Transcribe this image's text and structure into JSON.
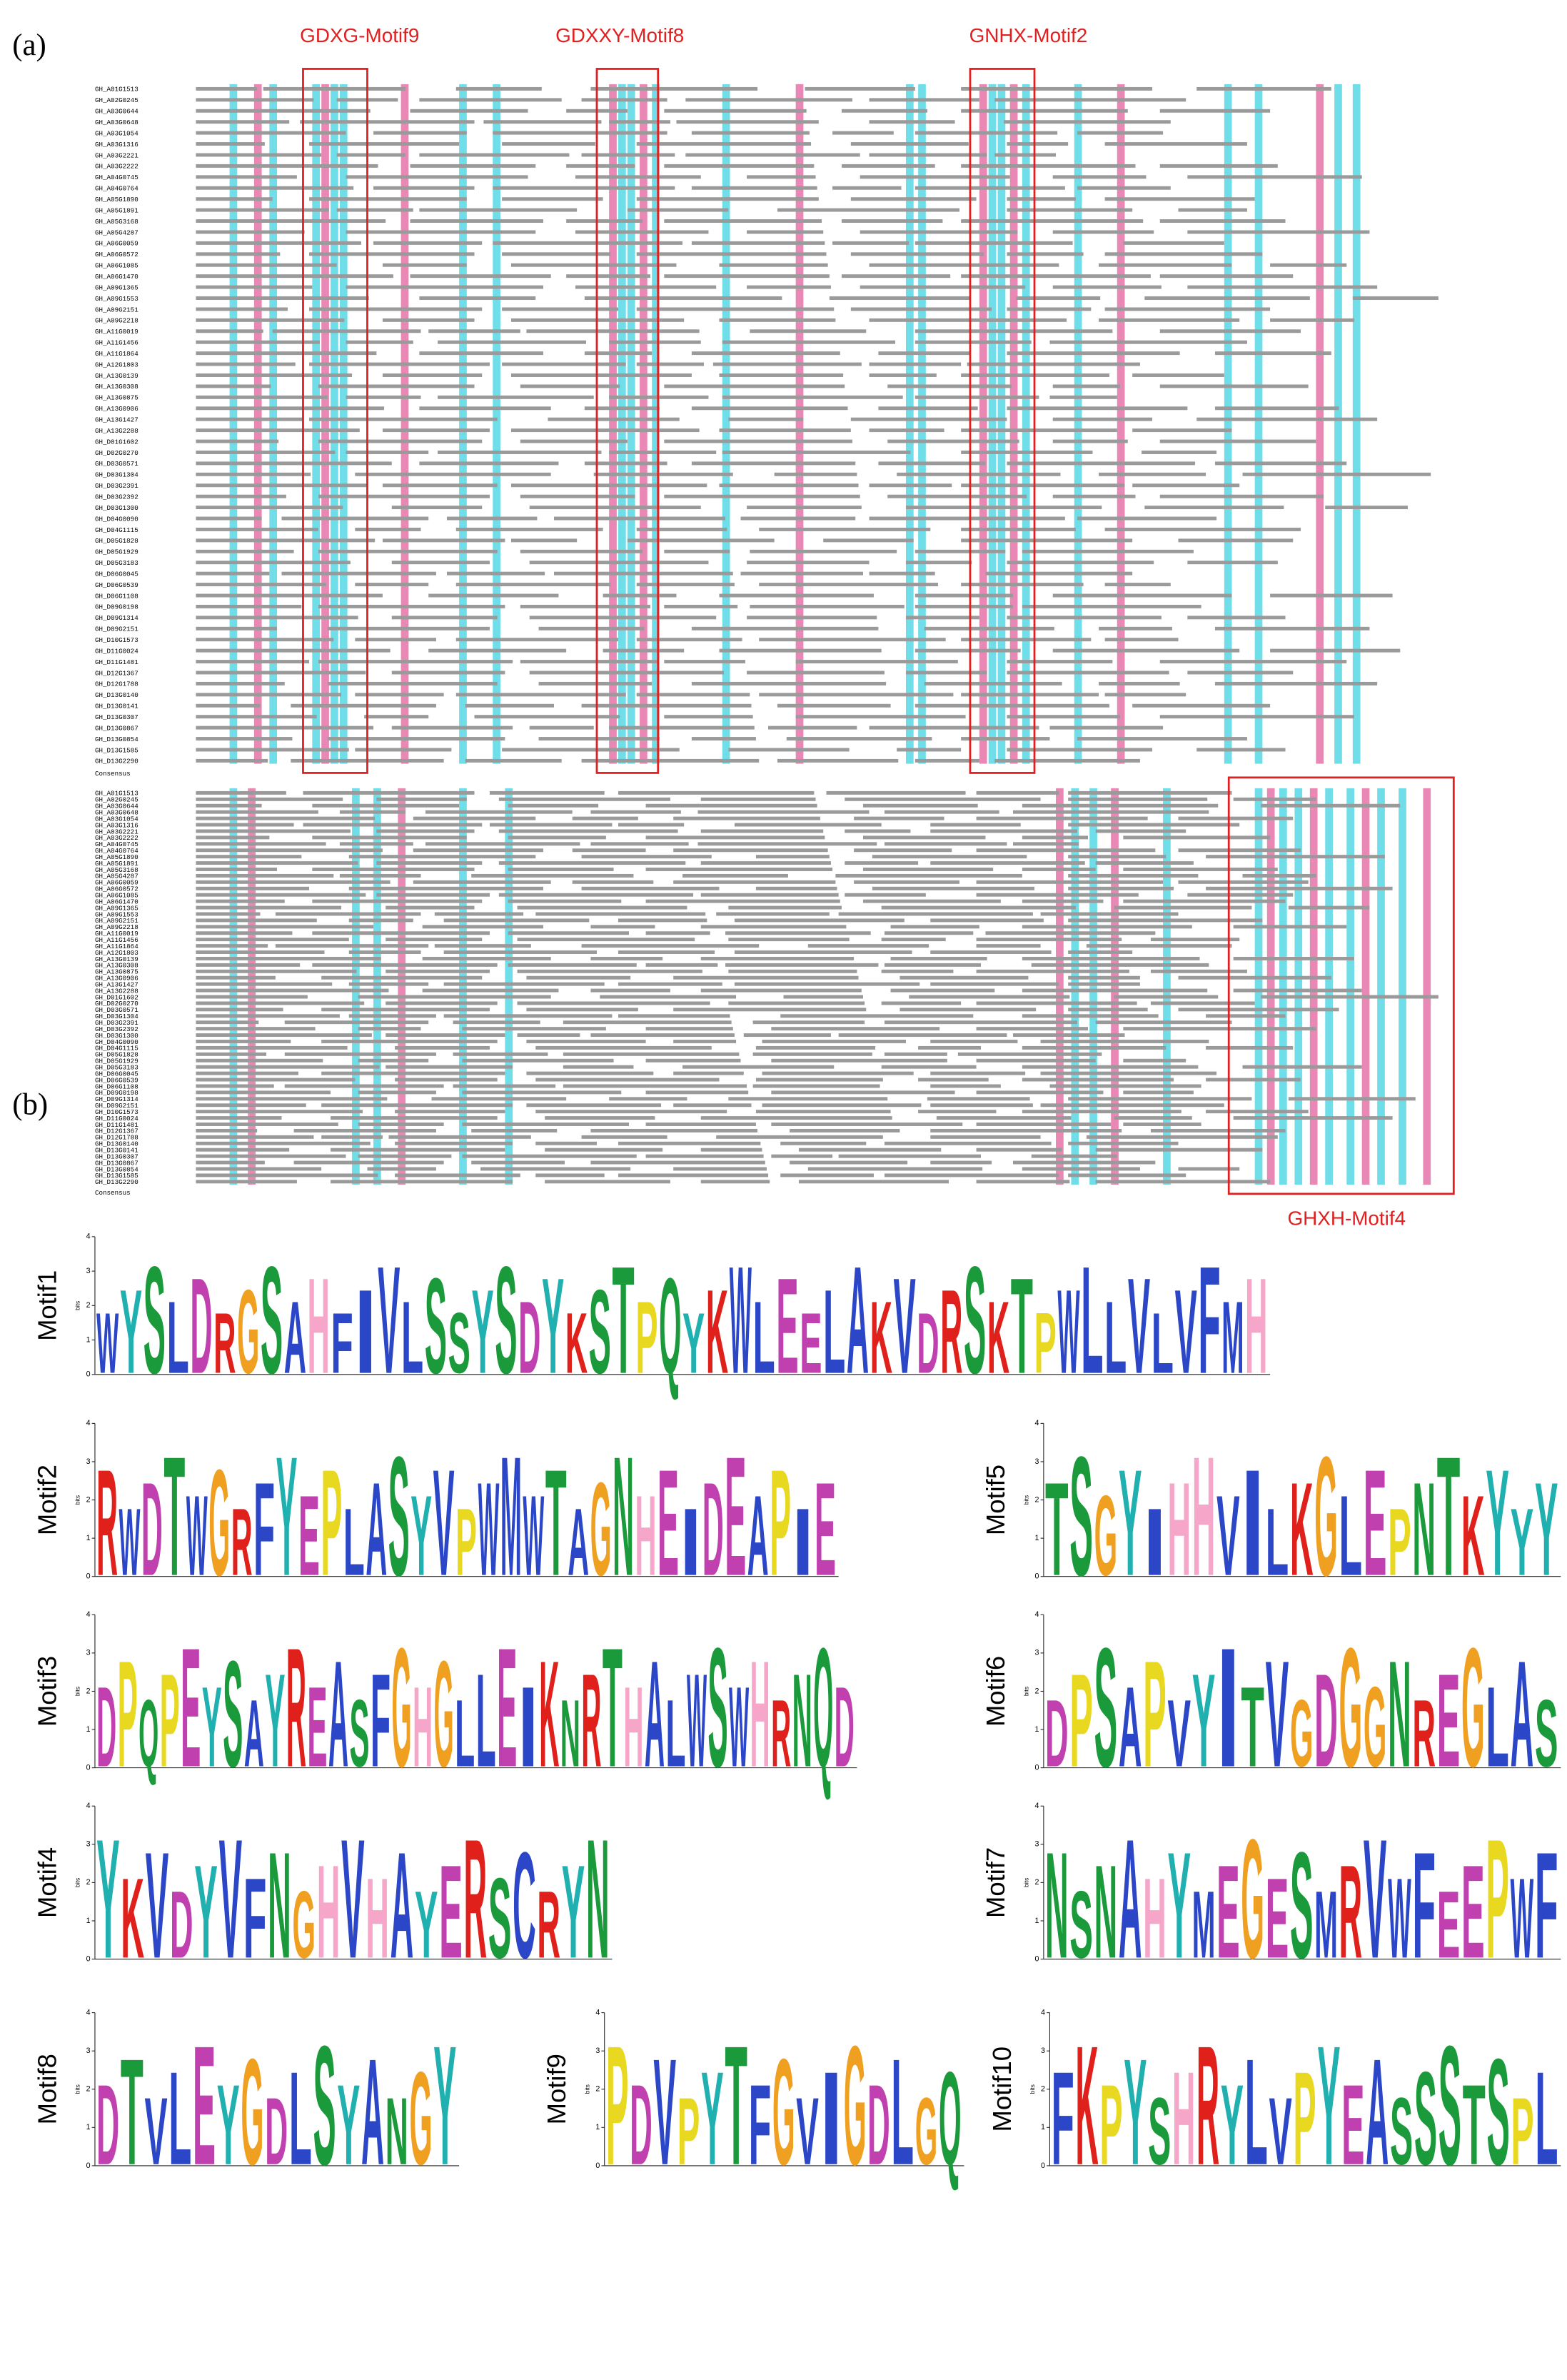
{
  "panel_a": {
    "label": "(a)",
    "motif_boxes": [
      {
        "label": "GDXG-Motif9"
      },
      {
        "label": "GDXXY-Motif8"
      },
      {
        "label": "GNHX-Motif2"
      },
      {
        "label": "GHXH-Motif4"
      }
    ],
    "sequence_ids": [
      "GH_A01G1513",
      "GH_A02G0245",
      "GH_A03G0644",
      "GH_A03G0648",
      "GH_A03G1054",
      "GH_A03G1316",
      "GH_A03G2221",
      "GH_A03G2222",
      "GH_A04G0745",
      "GH_A04G0764",
      "GH_A05G1890",
      "GH_A05G1891",
      "GH_A05G3168",
      "GH_A05G4287",
      "GH_A06G0059",
      "GH_A06G0572",
      "GH_A06G1085",
      "GH_A06G1470",
      "GH_A09G1365",
      "GH_A09G1553",
      "GH_A09G2151",
      "GH_A09G2218",
      "GH_A11G0019",
      "GH_A11G1456",
      "GH_A11G1864",
      "GH_A12G1803",
      "GH_A13G0139",
      "GH_A13G0308",
      "GH_A13G0875",
      "GH_A13G0906",
      "GH_A13G1427",
      "GH_A13G2288",
      "GH_D01G1602",
      "GH_D02G0270",
      "GH_D03G0571",
      "GH_D03G1304",
      "GH_D03G2391",
      "GH_D03G2392",
      "GH_D03G1300",
      "GH_D04G0090",
      "GH_D04G1115",
      "GH_D05G1828",
      "GH_D05G1929",
      "GH_D05G3183",
      "GH_D06G0045",
      "GH_D06G0539",
      "GH_D06G1108",
      "GH_D09G0198",
      "GH_D09G1314",
      "GH_D09G2151",
      "GH_D10G1573",
      "GH_D11G0024",
      "GH_D11G1481",
      "GH_D12G1367",
      "GH_D12G1788",
      "GH_D13G0140",
      "GH_D13G0141",
      "GH_D13G0307",
      "GH_D13G0867",
      "GH_D13G0854",
      "GH_D13G1585",
      "GH_D13G2290"
    ],
    "consensus_label": "Consensus"
  },
  "panel_b": {
    "label": "(b)",
    "ylabel": "bits",
    "yticks": [
      0,
      1,
      2,
      3,
      4
    ],
    "residue_colors": {
      "A": "#2b47c8",
      "C": "#2b47c8",
      "F": "#2b47c8",
      "I": "#2b47c8",
      "L": "#2b47c8",
      "M": "#2b47c8",
      "V": "#2b47c8",
      "W": "#2b47c8",
      "N": "#1a9a3a",
      "Q": "#1a9a3a",
      "S": "#1a9a3a",
      "T": "#1a9a3a",
      "D": "#c040b0",
      "E": "#c040b0",
      "K": "#e0201a",
      "R": "#e0201a",
      "H": "#f6a6c8",
      "G": "#f0a020",
      "P": "#e8d820",
      "Y": "#20b0b0"
    },
    "logos": [
      {
        "name": "Motif1",
        "consensus": "WYSLDRGSAHFIVLSSYSDYKSTPQYKWLEELAKVDRSKTPWLLVLVFMH"
      },
      {
        "name": "Motif2",
        "consensus": "RWDTWGRFYEPLASYVPWMWTAGNHEIDEAPIE"
      },
      {
        "name": "Motif3",
        "consensus": "DPQPEYSAYREASFGHGLLEIKNRTHALWSWHRNQD"
      },
      {
        "name": "Motif4",
        "consensus": "YKVDYVFNGHVHAYERSCRYN"
      },
      {
        "name": "Motif5",
        "consensus": "TSGYIHHVILKGLEPNTKYYY"
      },
      {
        "name": "Motif6",
        "consensus": "DPSAPVYITVGDGGNREGLAS"
      },
      {
        "name": "Motif7",
        "consensus": "NSNAHYMEGESMRVWFEEPWF"
      },
      {
        "name": "Motif8",
        "consensus": "DTVLEYGDLSYANGY"
      },
      {
        "name": "Motif9",
        "consensus": "PDVPYTFGVIGDLGQ"
      },
      {
        "name": "Motif10",
        "consensus": "FKPYSHRYLVPYEASSSTSPL"
      }
    ]
  }
}
